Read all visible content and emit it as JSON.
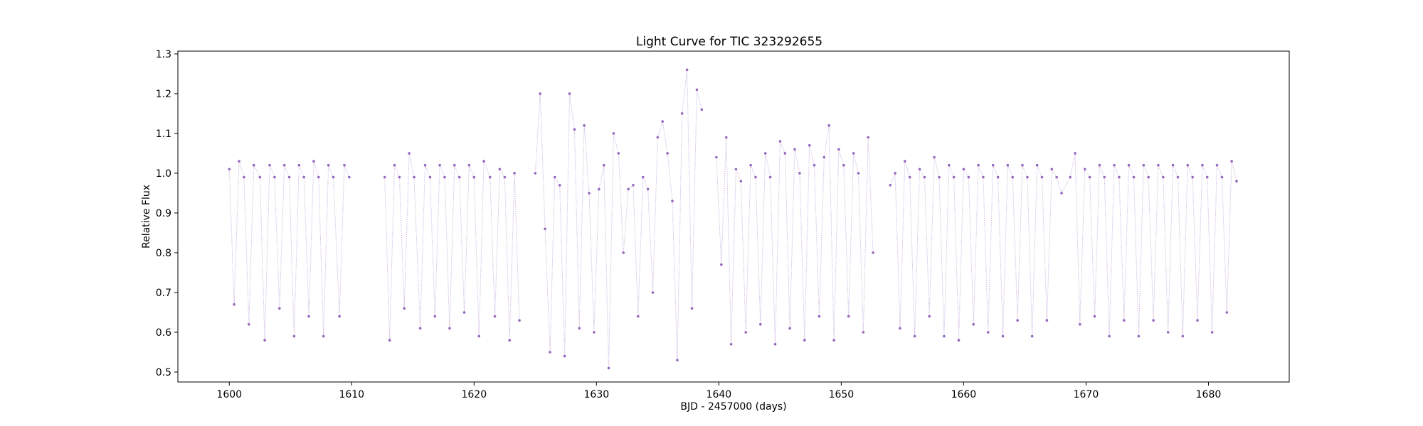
{
  "chart_data": {
    "type": "scatter",
    "title": "Light Curve for TIC 323292655",
    "xlabel": "BJD - 2457000 (days)",
    "ylabel": "Relative Flux",
    "xlim": [
      1595.8,
      1686.6
    ],
    "ylim": [
      0.475,
      1.307
    ],
    "xticks": [
      1600,
      1610,
      1620,
      1630,
      1640,
      1650,
      1660,
      1670,
      1680
    ],
    "yticks": [
      0.5,
      0.6,
      0.7,
      0.8,
      0.9,
      1.0,
      1.1,
      1.2,
      1.3
    ],
    "grid": false,
    "legend": "none",
    "series": [
      {
        "color": "#9467bd",
        "x": [
          1600.0,
          1600.4,
          1600.8,
          1601.2,
          1601.6,
          1602.0,
          1602.5,
          1602.9,
          1603.3,
          1603.7,
          1604.1,
          1604.5,
          1604.9,
          1605.3,
          1605.7,
          1606.1,
          1606.5,
          1606.9,
          1607.3,
          1607.7,
          1608.1,
          1608.5,
          1609.0,
          1609.4,
          1609.8,
          1612.7,
          1613.1,
          1613.5,
          1613.9,
          1614.3,
          1614.7,
          1615.1,
          1615.6,
          1616.0,
          1616.4,
          1616.8,
          1617.2,
          1617.6,
          1618.0,
          1618.4,
          1618.8,
          1619.2,
          1619.6,
          1620.0,
          1620.4,
          1620.8,
          1621.3,
          1621.7,
          1622.1,
          1622.5,
          1622.9,
          1623.3,
          1623.7,
          1625.0,
          1625.4,
          1625.8,
          1626.2,
          1626.6,
          1627.0,
          1627.4,
          1627.8,
          1628.2,
          1628.6,
          1629.0,
          1629.4,
          1629.8,
          1630.2,
          1630.6,
          1631.0,
          1631.4,
          1631.8,
          1632.2,
          1632.6,
          1633.0,
          1633.4,
          1633.8,
          1634.2,
          1634.6,
          1635.0,
          1635.4,
          1635.8,
          1636.2,
          1636.6,
          1637.0,
          1637.4,
          1637.8,
          1638.2,
          1638.6,
          1639.8,
          1640.2,
          1640.6,
          1641.0,
          1641.4,
          1641.8,
          1642.2,
          1642.6,
          1643.0,
          1643.4,
          1643.8,
          1644.2,
          1644.6,
          1645.0,
          1645.4,
          1645.8,
          1646.2,
          1646.6,
          1647.0,
          1647.4,
          1647.8,
          1648.2,
          1648.6,
          1649.0,
          1649.4,
          1649.8,
          1650.2,
          1650.6,
          1651.0,
          1651.4,
          1651.8,
          1652.2,
          1652.6,
          1654.0,
          1654.4,
          1654.8,
          1655.2,
          1655.6,
          1656.0,
          1656.4,
          1656.8,
          1657.2,
          1657.6,
          1658.0,
          1658.4,
          1658.8,
          1659.2,
          1659.6,
          1660.0,
          1660.4,
          1660.8,
          1661.2,
          1661.6,
          1662.0,
          1662.4,
          1662.8,
          1663.2,
          1663.6,
          1664.0,
          1664.4,
          1664.8,
          1665.2,
          1665.6,
          1666.0,
          1666.4,
          1666.8,
          1667.2,
          1667.6,
          1668.0,
          1668.7,
          1669.1,
          1669.5,
          1669.9,
          1670.3,
          1670.7,
          1671.1,
          1671.5,
          1671.9,
          1672.3,
          1672.7,
          1673.1,
          1673.5,
          1673.9,
          1674.3,
          1674.7,
          1675.1,
          1675.5,
          1675.9,
          1676.3,
          1676.7,
          1677.1,
          1677.5,
          1677.9,
          1678.3,
          1678.7,
          1679.1,
          1679.5,
          1679.9,
          1680.3,
          1680.7,
          1681.1,
          1681.5,
          1681.9,
          1682.3
        ],
        "y": [
          1.01,
          0.67,
          1.03,
          0.99,
          0.62,
          1.02,
          0.99,
          0.58,
          1.02,
          0.99,
          0.66,
          1.02,
          0.99,
          0.59,
          1.02,
          0.99,
          0.64,
          1.03,
          0.99,
          0.59,
          1.02,
          0.99,
          0.64,
          1.02,
          0.99,
          0.99,
          0.58,
          1.02,
          0.99,
          0.66,
          1.05,
          0.99,
          0.61,
          1.02,
          0.99,
          0.64,
          1.02,
          0.99,
          0.61,
          1.02,
          0.99,
          0.65,
          1.02,
          0.99,
          0.59,
          1.03,
          0.99,
          0.64,
          1.01,
          0.99,
          0.58,
          1.0,
          0.63,
          1.0,
          1.2,
          0.86,
          0.55,
          0.99,
          0.97,
          0.54,
          1.2,
          1.11,
          0.61,
          1.12,
          0.95,
          0.6,
          0.96,
          1.02,
          0.51,
          1.1,
          1.05,
          0.8,
          0.96,
          0.97,
          0.64,
          0.99,
          0.96,
          0.7,
          1.09,
          1.13,
          1.05,
          0.93,
          0.53,
          1.15,
          1.26,
          0.66,
          1.21,
          1.16,
          1.04,
          0.77,
          1.09,
          0.57,
          1.01,
          0.98,
          0.6,
          1.02,
          0.99,
          0.62,
          1.05,
          0.99,
          0.57,
          1.08,
          1.05,
          0.61,
          1.06,
          1.0,
          0.58,
          1.07,
          1.02,
          0.64,
          1.04,
          1.12,
          0.58,
          1.06,
          1.02,
          0.64,
          1.05,
          1.0,
          0.6,
          1.09,
          0.8,
          0.97,
          1.0,
          0.61,
          1.03,
          0.99,
          0.59,
          1.01,
          0.99,
          0.64,
          1.04,
          0.99,
          0.59,
          1.02,
          0.99,
          0.58,
          1.01,
          0.99,
          0.62,
          1.02,
          0.99,
          0.6,
          1.02,
          0.99,
          0.59,
          1.02,
          0.99,
          0.63,
          1.02,
          0.99,
          0.59,
          1.02,
          0.99,
          0.63,
          1.01,
          0.99,
          0.95,
          0.99,
          1.05,
          0.62,
          1.01,
          0.99,
          0.64,
          1.02,
          0.99,
          0.59,
          1.02,
          0.99,
          0.63,
          1.02,
          0.99,
          0.59,
          1.02,
          0.99,
          0.63,
          1.02,
          0.99,
          0.6,
          1.02,
          0.99,
          0.59,
          1.02,
          0.99,
          0.63,
          1.02,
          0.99,
          0.6,
          1.02,
          0.99,
          0.65,
          1.03,
          0.98
        ]
      }
    ]
  }
}
